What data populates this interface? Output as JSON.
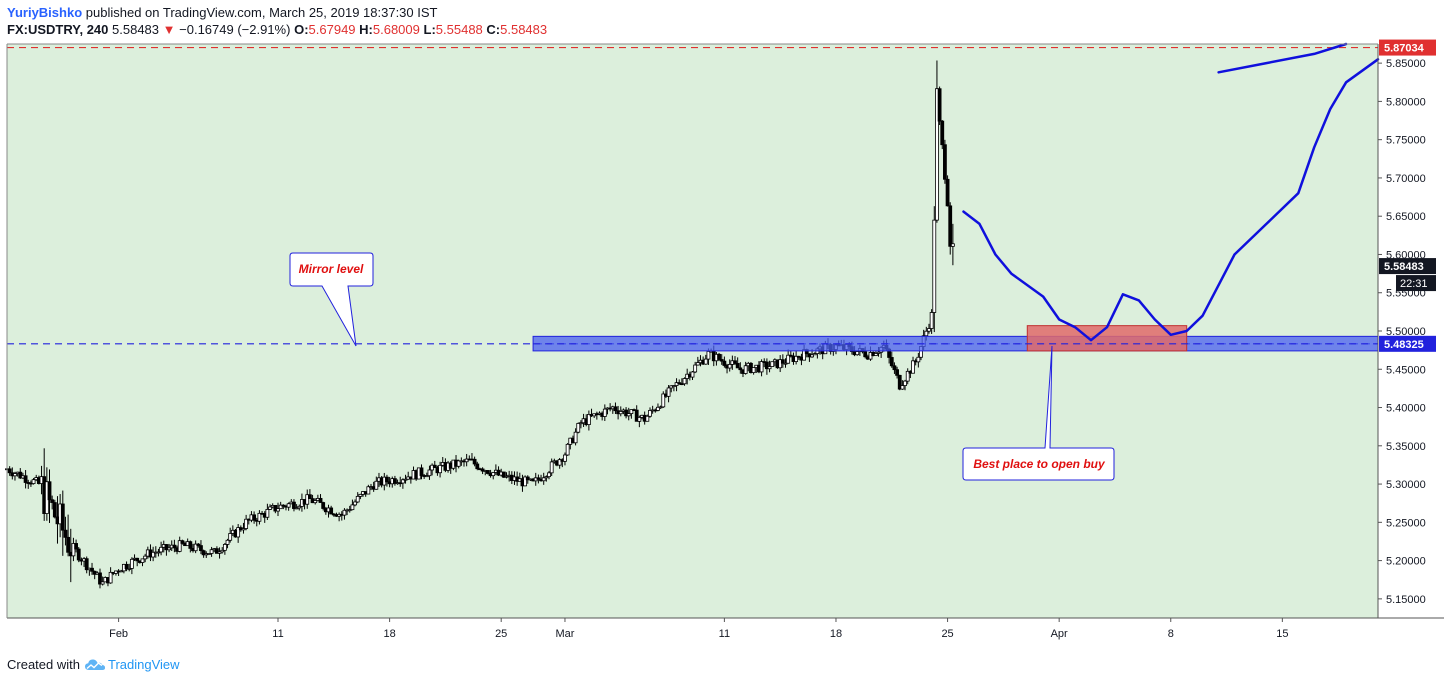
{
  "header": {
    "author": "YuriyBishko",
    "published_text": "published on TradingView.com, March 25, 2019 18:37:30 IST",
    "symbol_label": "FX:USDTRY, 240",
    "last_price": "5.58483",
    "change_text": "−0.16749 (−2.91%)",
    "open_label": "O:",
    "open_value": "5.67949",
    "high_label": "H:",
    "high_value": "5.68009",
    "low_label": "L:",
    "low_value": "5.55488",
    "close_label": "C:",
    "close_value": "5.58483"
  },
  "footer": {
    "created_with": "Created with",
    "brand": "TradingView"
  },
  "annotations": {
    "mirror_level": "Mirror level",
    "best_place": "Best place to open buy"
  },
  "price_axis": {
    "tick_labels": [
      "5.85000",
      "5.80000",
      "5.75000",
      "5.70000",
      "5.65000",
      "5.60000",
      "5.55000",
      "5.50000",
      "5.45000",
      "5.40000",
      "5.35000",
      "5.30000",
      "5.25000",
      "5.20000",
      "5.15000"
    ],
    "ticks": [
      5.85,
      5.8,
      5.75,
      5.7,
      5.65,
      5.6,
      5.55,
      5.5,
      5.45,
      5.4,
      5.35,
      5.3,
      5.25,
      5.2,
      5.15
    ],
    "red_level": 5.87034,
    "red_level_label": "5.87034",
    "current_price": 5.58483,
    "current_price_label": "5.58483",
    "countdown_label": "22:31",
    "blue_level": 5.48325,
    "blue_level_label": "5.48325"
  },
  "time_axis": {
    "labels": [
      "Feb",
      "11",
      "18",
      "25",
      "Mar",
      "11",
      "18",
      "25",
      "Apr",
      "8",
      "15"
    ],
    "label_dates": [
      "2019-02-01",
      "2019-02-11",
      "2019-02-18",
      "2019-02-25",
      "2019-03-01",
      "2019-03-11",
      "2019-03-18",
      "2019-03-25",
      "2019-04-01",
      "2019-04-08",
      "2019-04-15"
    ]
  },
  "colors": {
    "plot_bg": "#dcefdc",
    "candle": "#000000",
    "red_level": "#e03030",
    "blue_level": "#2222dd",
    "zone_fill": "#4a5ff0",
    "buy_zone_fill": "#e06a6a",
    "projection": "#1010dd",
    "callout_text": "#e01010"
  },
  "chart_data": {
    "type": "candlestick",
    "symbol": "FX:USDTRY",
    "interval": "240",
    "x_range": [
      "2019-01-25",
      "2019-04-21"
    ],
    "ylim": [
      5.125,
      5.875
    ],
    "grid": false,
    "horizontal_levels": [
      {
        "value": 5.87034,
        "style": "dashed",
        "color": "red"
      },
      {
        "value": 5.48325,
        "style": "dashed",
        "color": "blue"
      }
    ],
    "zones": [
      {
        "name": "support_zone",
        "x_from": "2019-02-27",
        "x_to": "2019-04-21",
        "y_from": 5.474,
        "y_to": 5.493
      },
      {
        "name": "buy_zone",
        "x_from": "2019-03-30",
        "x_to": "2019-04-09",
        "y_from": 5.474,
        "y_to": 5.507
      }
    ],
    "projection_path": [
      [
        "2019-03-26",
        5.656
      ],
      [
        "2019-03-27",
        5.64
      ],
      [
        "2019-03-28",
        5.6
      ],
      [
        "2019-03-29",
        5.575
      ],
      [
        "2019-03-31",
        5.545
      ],
      [
        "2019-04-01",
        5.515
      ],
      [
        "2019-04-02",
        5.505
      ],
      [
        "2019-04-03",
        5.488
      ],
      [
        "2019-04-04",
        5.505
      ],
      [
        "2019-04-05",
        5.548
      ],
      [
        "2019-04-06",
        5.54
      ],
      [
        "2019-04-07",
        5.515
      ],
      [
        "2019-04-08",
        5.495
      ],
      [
        "2019-04-09",
        5.5
      ],
      [
        "2019-04-10",
        5.52
      ],
      [
        "2019-04-11",
        5.56
      ],
      [
        "2019-04-12",
        5.6
      ],
      [
        "2019-04-14",
        5.64
      ],
      [
        "2019-04-16",
        5.68
      ],
      [
        "2019-04-17",
        5.74
      ],
      [
        "2019-04-18",
        5.79
      ],
      [
        "2019-04-19",
        5.825
      ],
      [
        "2019-04-21",
        5.855
      ]
    ],
    "projection_path_2": [
      [
        "2019-04-11",
        5.838
      ],
      [
        "2019-04-14",
        5.85
      ],
      [
        "2019-04-17",
        5.862
      ],
      [
        "2019-04-19",
        5.875
      ]
    ],
    "anchors": [
      [
        "2019-01-25",
        5.32
      ],
      [
        "2019-01-27",
        5.3
      ],
      [
        "2019-01-29",
        5.22
      ],
      [
        "2019-01-31",
        5.17
      ],
      [
        "2019-02-01",
        5.19
      ],
      [
        "2019-02-03",
        5.21
      ],
      [
        "2019-02-05",
        5.22
      ],
      [
        "2019-02-07",
        5.21
      ],
      [
        "2019-02-09",
        5.25
      ],
      [
        "2019-02-11",
        5.27
      ],
      [
        "2019-02-13",
        5.28
      ],
      [
        "2019-02-15",
        5.26
      ],
      [
        "2019-02-17",
        5.3
      ],
      [
        "2019-02-19",
        5.31
      ],
      [
        "2019-02-21",
        5.32
      ],
      [
        "2019-02-23",
        5.33
      ],
      [
        "2019-02-25",
        5.31
      ],
      [
        "2019-02-27",
        5.3
      ],
      [
        "2019-03-01",
        5.34
      ],
      [
        "2019-03-02",
        5.38
      ],
      [
        "2019-03-04",
        5.4
      ],
      [
        "2019-03-06",
        5.385
      ],
      [
        "2019-03-08",
        5.43
      ],
      [
        "2019-03-10",
        5.47
      ],
      [
        "2019-03-12",
        5.45
      ],
      [
        "2019-03-14",
        5.455
      ],
      [
        "2019-03-16",
        5.47
      ],
      [
        "2019-03-18",
        5.48
      ],
      [
        "2019-03-20",
        5.47
      ],
      [
        "2019-03-21",
        5.48
      ],
      [
        "2019-03-22",
        5.43
      ],
      [
        "2019-03-23",
        5.46
      ],
      [
        "2019-03-24",
        5.52
      ],
      [
        "2019-03-24T08:00",
        5.8
      ],
      [
        "2019-03-24T16:00",
        5.74
      ],
      [
        "2019-03-25",
        5.67
      ],
      [
        "2019-03-25T08:00",
        5.58483
      ]
    ]
  }
}
